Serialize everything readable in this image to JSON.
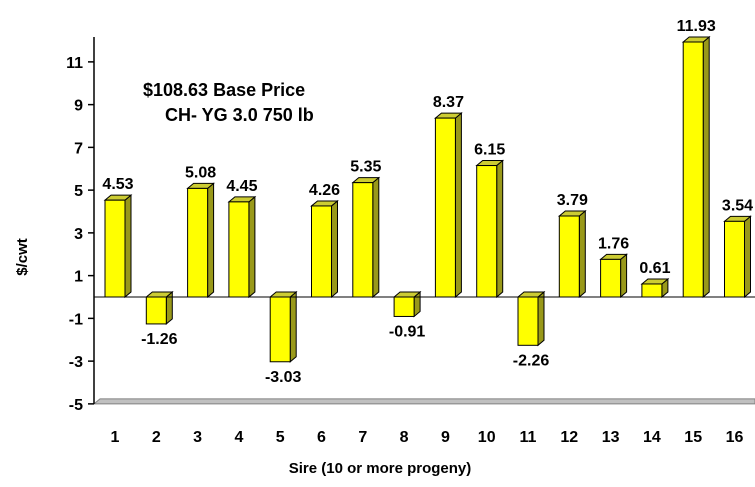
{
  "chart_data": {
    "type": "bar",
    "categories": [
      "1",
      "2",
      "3",
      "4",
      "5",
      "6",
      "7",
      "8",
      "9",
      "10",
      "11",
      "12",
      "13",
      "14",
      "15",
      "16"
    ],
    "series": [
      {
        "values": [
          4.53,
          -1.26,
          5.08,
          4.45,
          -3.03,
          4.26,
          5.35,
          -0.91,
          8.37,
          6.15,
          -2.26,
          3.79,
          1.76,
          0.61,
          11.93,
          3.54
        ]
      }
    ],
    "data_labels": [
      "4.53",
      "-1.26",
      "5.08",
      "4.45",
      "-3.03",
      "4.26",
      "5.35",
      "-0.91",
      "8.37",
      "6.15",
      "-2.26",
      "3.79",
      "1.76",
      "0.61",
      "11.93",
      "3.54"
    ],
    "xlabel": "Sire (10 or more progeny)",
    "ylabel": "$/cwt",
    "ylim": [
      -5,
      12
    ],
    "yticks": [
      11,
      9,
      7,
      5,
      3,
      1,
      -1,
      -3,
      -5
    ],
    "annotation_lines": [
      "$108.63 Base Price",
      "CH- YG 3.0 750 lb"
    ],
    "grid": false,
    "legend": "none",
    "colors": {
      "bar_face": "#ffff00",
      "bar_side": "#99991a",
      "bar_top": "#cccc33",
      "outline": "#000000",
      "floor": "#c0c0c0"
    }
  }
}
